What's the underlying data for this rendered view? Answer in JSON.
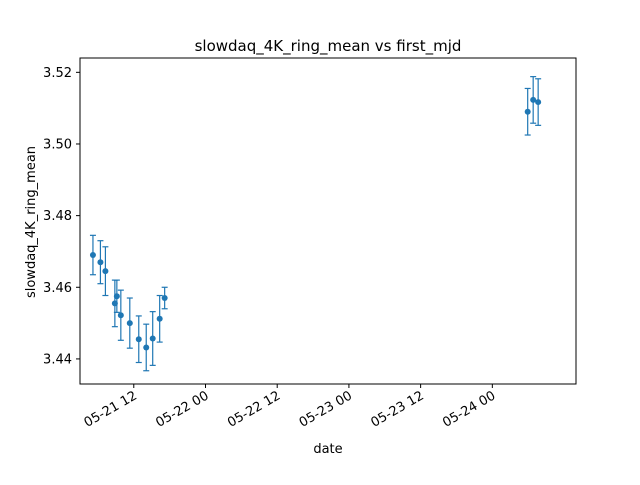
{
  "chart_data": {
    "type": "scatter",
    "title": "slowdaq_4K_ring_mean vs first_mjd",
    "xlabel": "date",
    "ylabel": "slowdaq_4K_ring_mean",
    "x_ticks": [
      {
        "label": "05-21 12",
        "value": "2023-05-21T12:00"
      },
      {
        "label": "05-22 00",
        "value": "2023-05-22T00:00"
      },
      {
        "label": "05-22 12",
        "value": "2023-05-22T12:00"
      },
      {
        "label": "05-23 00",
        "value": "2023-05-23T00:00"
      },
      {
        "label": "05-23 12",
        "value": "2023-05-23T12:00"
      },
      {
        "label": "05-24 00",
        "value": "2023-05-24T00:00"
      }
    ],
    "y_ticks": [
      3.44,
      3.46,
      3.48,
      3.5,
      3.52
    ],
    "xlim": [
      "2023-05-21T03:00",
      "2023-05-24T14:00"
    ],
    "ylim": [
      3.433,
      3.524
    ],
    "grid": false,
    "series": [
      {
        "color": "#1f77b4",
        "marker": "circle",
        "error_bars": true,
        "points": [
          {
            "x": "2023-05-21T05:10",
            "y": 3.469,
            "err": 0.0055
          },
          {
            "x": "2023-05-21T06:25",
            "y": 3.467,
            "err": 0.006
          },
          {
            "x": "2023-05-21T07:15",
            "y": 3.4645,
            "err": 0.0068
          },
          {
            "x": "2023-05-21T08:50",
            "y": 3.4555,
            "err": 0.0065
          },
          {
            "x": "2023-05-21T09:10",
            "y": 3.4575,
            "err": 0.0045
          },
          {
            "x": "2023-05-21T09:50",
            "y": 3.4522,
            "err": 0.007
          },
          {
            "x": "2023-05-21T11:20",
            "y": 3.45,
            "err": 0.007
          },
          {
            "x": "2023-05-21T12:50",
            "y": 3.4455,
            "err": 0.0065
          },
          {
            "x": "2023-05-21T14:05",
            "y": 3.4432,
            "err": 0.0065
          },
          {
            "x": "2023-05-21T15:10",
            "y": 3.4457,
            "err": 0.0075
          },
          {
            "x": "2023-05-21T16:20",
            "y": 3.4512,
            "err": 0.0065
          },
          {
            "x": "2023-05-21T17:10",
            "y": 3.457,
            "err": 0.003
          },
          {
            "x": "2023-05-24T05:55",
            "y": 3.509,
            "err": 0.0065
          },
          {
            "x": "2023-05-24T06:50",
            "y": 3.5123,
            "err": 0.0065
          },
          {
            "x": "2023-05-24T07:40",
            "y": 3.5117,
            "err": 0.0065
          }
        ]
      }
    ]
  }
}
